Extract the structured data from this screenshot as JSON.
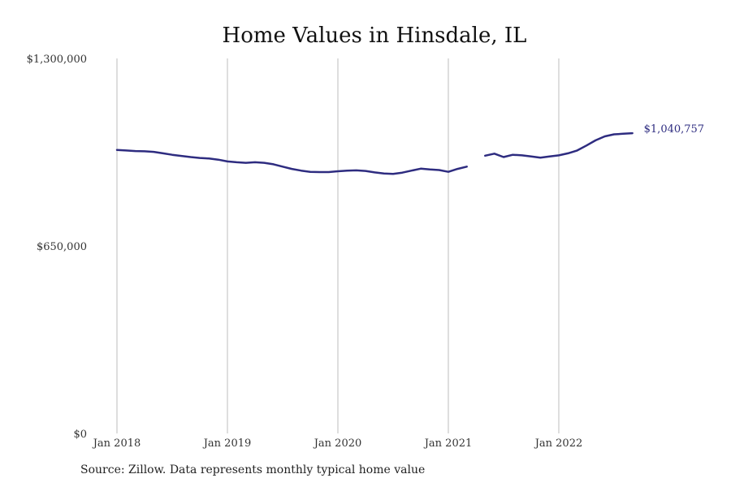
{
  "chart_data": {
    "type": "line",
    "title": "Home Values in Hinsdale, IL",
    "xlabel": "",
    "ylabel": "",
    "ylim": [
      0,
      1300000
    ],
    "y_ticks": [
      {
        "value": 0,
        "label": "$0"
      },
      {
        "value": 650000,
        "label": "$650,000"
      },
      {
        "value": 1300000,
        "label": "$1,300,000"
      }
    ],
    "x_ticks": [
      {
        "label": "Jan 2018",
        "month_index": 0
      },
      {
        "label": "Jan 2019",
        "month_index": 12
      },
      {
        "label": "Jan 2020",
        "month_index": 24
      },
      {
        "label": "Jan 2021",
        "month_index": 36
      },
      {
        "label": "Jan 2022",
        "month_index": 48
      }
    ],
    "grid": "vertical",
    "line_color": "#2e2c80",
    "end_label": "$1,040,757",
    "series": [
      {
        "name": "",
        "x": [
          "2018-01",
          "2018-02",
          "2018-03",
          "2018-04",
          "2018-05",
          "2018-06",
          "2018-07",
          "2018-08",
          "2018-09",
          "2018-10",
          "2018-11",
          "2018-12",
          "2019-01",
          "2019-02",
          "2019-03",
          "2019-04",
          "2019-05",
          "2019-06",
          "2019-07",
          "2019-08",
          "2019-09",
          "2019-10",
          "2019-11",
          "2019-12",
          "2020-01",
          "2020-02",
          "2020-03",
          "2020-04",
          "2020-05",
          "2020-06",
          "2020-07",
          "2020-08",
          "2020-09",
          "2020-10",
          "2020-11",
          "2020-12",
          "2021-01",
          "2021-02",
          "2021-03",
          "2021-04",
          "2021-05",
          "2021-06",
          "2021-07",
          "2021-08",
          "2021-09",
          "2021-10",
          "2021-11",
          "2021-12",
          "2022-01",
          "2022-02",
          "2022-03",
          "2022-04",
          "2022-05",
          "2022-06",
          "2022-07",
          "2022-08",
          "2022-09"
        ],
        "values": [
          983000,
          981000,
          979000,
          978000,
          976000,
          971000,
          966000,
          962000,
          958000,
          955000,
          953000,
          949000,
          943000,
          940000,
          938000,
          940000,
          938000,
          933000,
          925000,
          917000,
          911000,
          907000,
          906000,
          906000,
          909000,
          911000,
          912000,
          910000,
          905000,
          901000,
          900000,
          904000,
          911000,
          918000,
          915000,
          913000,
          907000,
          917000,
          925000,
          null,
          963000,
          970000,
          958000,
          966000,
          964000,
          960000,
          956000,
          960000,
          964000,
          971000,
          981000,
          998000,
          1016000,
          1030000,
          1037000,
          1039000,
          1040757
        ]
      }
    ]
  },
  "source_text": "Source: Zillow. Data represents monthly typical home value"
}
